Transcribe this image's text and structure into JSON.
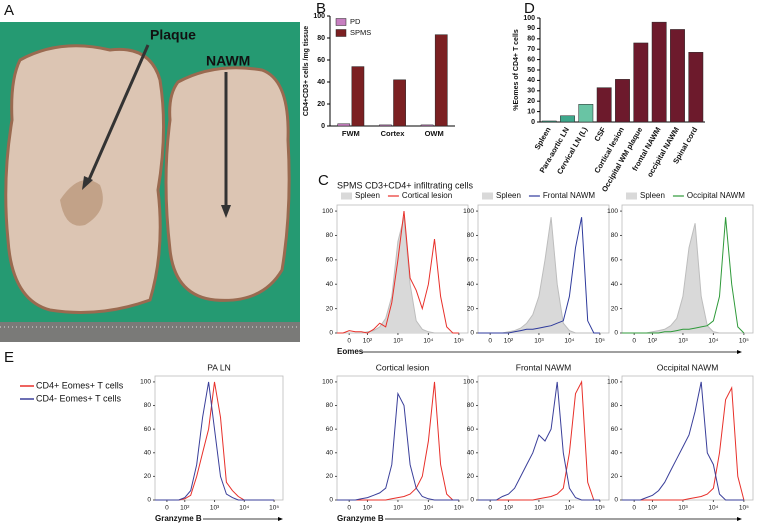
{
  "photo": {
    "panel": "A",
    "annotations": [
      "Plaque",
      "NAWM"
    ]
  },
  "legend_e": [
    {
      "name": "CD4+ Eomes+ T cells",
      "color": "#e8302a"
    },
    {
      "name": "CD4- Eomes+ T cells",
      "color": "#3a3f9a"
    }
  ],
  "chart_data": [
    {
      "type": "bar",
      "panel": "B",
      "y_label": "CD4+CD3+ cells /mg tissue",
      "categories": [
        "FWM",
        "Cortex",
        "OWM"
      ],
      "series": [
        {
          "name": "PD",
          "color": "#c77fc0",
          "values": [
            2,
            1,
            1
          ]
        },
        {
          "name": "SPMS",
          "color": "#7b2022",
          "values": [
            54,
            42,
            83
          ]
        }
      ],
      "ylim": [
        0,
        100
      ],
      "yticks": [
        0,
        20,
        40,
        60,
        80,
        100
      ]
    },
    {
      "type": "bar",
      "panel": "D",
      "y_label": "%Eomes of CD4+ T cells",
      "categories": [
        "Spleen",
        "Para-aortic LN",
        "Cervical LN (L)",
        "CSF",
        "Cortical lesion",
        "Occipital WM plaque",
        "frontal NAWM",
        "occipital NAWM",
        "Spinal cord"
      ],
      "values": [
        1,
        6,
        17,
        33,
        41,
        76,
        96,
        89,
        67
      ],
      "colors": [
        "#3fa88c",
        "#3fa88c",
        "#69c4a4",
        "#6d1a2c",
        "#6d1a2c",
        "#6d1a2c",
        "#6d1a2c",
        "#6d1a2c",
        "#6d1a2c"
      ],
      "ylim": [
        0,
        100
      ],
      "yticks": [
        0,
        10,
        20,
        30,
        40,
        50,
        60,
        70,
        80,
        90,
        100
      ]
    },
    {
      "type": "line",
      "panel": "C",
      "panel_title": "SPMS CD3+CD4+ infiltrating cells",
      "x_label": "Eomes",
      "x": [
        1.0,
        1.2,
        1.4,
        1.6,
        1.8,
        2.0,
        2.2,
        2.4,
        2.6,
        2.8,
        3.0,
        3.2,
        3.4,
        3.6,
        3.8,
        4.0,
        4.2,
        4.4,
        4.6,
        4.8,
        5.0
      ],
      "xlim": [
        1.0,
        5.3
      ],
      "xticks": [
        {
          "value": 1.4,
          "label": "0"
        },
        {
          "value": 2,
          "label": "10²"
        },
        {
          "value": 3,
          "label": "10³"
        },
        {
          "value": 4,
          "label": "10⁴"
        },
        {
          "value": 5,
          "label": "10⁵"
        }
      ],
      "ylim": [
        0,
        105
      ],
      "yticks": [
        0,
        20,
        40,
        60,
        80,
        100
      ],
      "series": [
        {
          "name": "Spleen",
          "color": "#bdbdbd",
          "fill": "#d9d9d9",
          "values": [
            0,
            0,
            0,
            0,
            0,
            1,
            2,
            5,
            12,
            30,
            75,
            95,
            40,
            10,
            3,
            1,
            0,
            0,
            0,
            0,
            0
          ]
        },
        {
          "name": "Cortical lesion",
          "color": "#e8302a",
          "values": [
            0,
            0,
            2,
            1,
            1,
            0,
            3,
            8,
            5,
            25,
            60,
            100,
            45,
            35,
            20,
            40,
            77,
            30,
            5,
            0,
            0
          ]
        }
      ]
    },
    {
      "type": "line",
      "x": [
        1.0,
        1.2,
        1.4,
        1.6,
        1.8,
        2.0,
        2.2,
        2.4,
        2.6,
        2.8,
        3.0,
        3.2,
        3.4,
        3.6,
        3.8,
        4.0,
        4.2,
        4.4,
        4.6,
        4.8,
        5.0
      ],
      "xlim": [
        1.0,
        5.3
      ],
      "xticks": [
        {
          "value": 1.4,
          "label": "0"
        },
        {
          "value": 2,
          "label": "10²"
        },
        {
          "value": 3,
          "label": "10³"
        },
        {
          "value": 4,
          "label": "10⁴"
        },
        {
          "value": 5,
          "label": "10⁵"
        }
      ],
      "ylim": [
        0,
        105
      ],
      "yticks": [
        0,
        20,
        40,
        60,
        80,
        100
      ],
      "series": [
        {
          "name": "Spleen",
          "color": "#bdbdbd",
          "fill": "#d9d9d9",
          "values": [
            0,
            0,
            0,
            0,
            0,
            1,
            2,
            4,
            8,
            15,
            30,
            60,
            95,
            40,
            8,
            2,
            0,
            0,
            0,
            0,
            0
          ]
        },
        {
          "name": "Frontal NAWM",
          "color": "#2e3a9c",
          "values": [
            0,
            0,
            0,
            0,
            0,
            0,
            1,
            2,
            3,
            3,
            4,
            5,
            6,
            8,
            10,
            30,
            70,
            95,
            10,
            0,
            0
          ]
        }
      ]
    },
    {
      "type": "line",
      "x": [
        1.0,
        1.2,
        1.4,
        1.6,
        1.8,
        2.0,
        2.2,
        2.4,
        2.6,
        2.8,
        3.0,
        3.2,
        3.4,
        3.6,
        3.8,
        4.0,
        4.2,
        4.4,
        4.6,
        4.8,
        5.0
      ],
      "xlim": [
        1.0,
        5.3
      ],
      "xticks": [
        {
          "value": 1.4,
          "label": "0"
        },
        {
          "value": 2,
          "label": "10²"
        },
        {
          "value": 3,
          "label": "10³"
        },
        {
          "value": 4,
          "label": "10⁴"
        },
        {
          "value": 5,
          "label": "10⁵"
        }
      ],
      "ylim": [
        0,
        105
      ],
      "yticks": [
        0,
        20,
        40,
        60,
        80,
        100
      ],
      "series": [
        {
          "name": "Spleen",
          "color": "#bdbdbd",
          "fill": "#d9d9d9",
          "values": [
            0,
            0,
            0,
            0,
            0,
            1,
            2,
            3,
            6,
            12,
            30,
            70,
            90,
            30,
            6,
            1,
            0,
            0,
            0,
            0,
            0
          ]
        },
        {
          "name": "Occipital NAWM",
          "color": "#2f9a3a",
          "values": [
            0,
            0,
            0,
            0,
            0,
            0,
            0,
            1,
            1,
            2,
            3,
            3,
            4,
            5,
            6,
            10,
            30,
            95,
            40,
            5,
            0
          ]
        }
      ]
    },
    {
      "type": "line",
      "panel": "E",
      "title": "PA LN",
      "x_label": "Granzyme B",
      "x": [
        1.0,
        1.2,
        1.4,
        1.6,
        1.8,
        2.0,
        2.2,
        2.4,
        2.6,
        2.8,
        3.0,
        3.2,
        3.4,
        3.6,
        3.8,
        4.0,
        4.2,
        4.4,
        4.6,
        4.8,
        5.0
      ],
      "xlim": [
        1.0,
        5.3
      ],
      "xticks": [
        {
          "value": 1.4,
          "label": "0"
        },
        {
          "value": 2,
          "label": "10²"
        },
        {
          "value": 3,
          "label": "10³"
        },
        {
          "value": 4,
          "label": "10⁴"
        },
        {
          "value": 5,
          "label": "10⁵"
        }
      ],
      "ylim": [
        0,
        105
      ],
      "yticks": [
        0,
        20,
        40,
        60,
        80,
        100
      ],
      "series": [
        {
          "values": [
            0,
            0,
            0,
            0,
            0,
            1,
            4,
            20,
            40,
            60,
            100,
            70,
            15,
            8,
            3,
            0,
            0,
            0,
            0,
            0,
            0
          ]
        },
        {
          "values": [
            0,
            0,
            0,
            0,
            0,
            2,
            8,
            30,
            70,
            100,
            60,
            20,
            5,
            2,
            0,
            0,
            0,
            0,
            0,
            0,
            0
          ]
        }
      ]
    },
    {
      "type": "line",
      "title": "Cortical lesion",
      "x_label": "Granzyme B",
      "x": [
        1.0,
        1.2,
        1.4,
        1.6,
        1.8,
        2.0,
        2.2,
        2.4,
        2.6,
        2.8,
        3.0,
        3.2,
        3.4,
        3.6,
        3.8,
        4.0,
        4.2,
        4.4,
        4.6,
        4.8,
        5.0
      ],
      "xlim": [
        1.0,
        5.3
      ],
      "xticks": [
        {
          "value": 1.4,
          "label": "0"
        },
        {
          "value": 2,
          "label": "10²"
        },
        {
          "value": 3,
          "label": "10³"
        },
        {
          "value": 4,
          "label": "10⁴"
        },
        {
          "value": 5,
          "label": "10⁵"
        }
      ],
      "ylim": [
        0,
        105
      ],
      "yticks": [
        0,
        20,
        40,
        60,
        80,
        100
      ],
      "series": [
        {
          "values": [
            0,
            0,
            0,
            0,
            0,
            0,
            0,
            0,
            0,
            1,
            2,
            3,
            5,
            10,
            20,
            50,
            100,
            30,
            5,
            0,
            0
          ]
        },
        {
          "values": [
            0,
            0,
            0,
            0,
            1,
            2,
            4,
            6,
            10,
            30,
            90,
            80,
            30,
            10,
            3,
            1,
            0,
            0,
            0,
            0,
            0
          ]
        }
      ]
    },
    {
      "type": "line",
      "title": "Frontal NAWM",
      "x": [
        1.0,
        1.2,
        1.4,
        1.6,
        1.8,
        2.0,
        2.2,
        2.4,
        2.6,
        2.8,
        3.0,
        3.2,
        3.4,
        3.6,
        3.8,
        4.0,
        4.2,
        4.4,
        4.6,
        4.8,
        5.0
      ],
      "xlim": [
        1.0,
        5.3
      ],
      "xticks": [
        {
          "value": 1.4,
          "label": "0"
        },
        {
          "value": 2,
          "label": "10²"
        },
        {
          "value": 3,
          "label": "10³"
        },
        {
          "value": 4,
          "label": "10⁴"
        },
        {
          "value": 5,
          "label": "10⁵"
        }
      ],
      "ylim": [
        0,
        105
      ],
      "yticks": [
        0,
        20,
        40,
        60,
        80,
        100
      ],
      "series": [
        {
          "values": [
            0,
            0,
            0,
            0,
            0,
            0,
            0,
            0,
            0,
            0,
            1,
            2,
            3,
            5,
            10,
            40,
            90,
            100,
            15,
            0,
            0
          ]
        },
        {
          "values": [
            0,
            0,
            0,
            0,
            3,
            5,
            10,
            20,
            30,
            40,
            55,
            50,
            60,
            100,
            40,
            10,
            2,
            0,
            0,
            0,
            0
          ]
        }
      ]
    },
    {
      "type": "line",
      "title": "Occipital NAWM",
      "x": [
        1.0,
        1.2,
        1.4,
        1.6,
        1.8,
        2.0,
        2.2,
        2.4,
        2.6,
        2.8,
        3.0,
        3.2,
        3.4,
        3.6,
        3.8,
        4.0,
        4.2,
        4.4,
        4.6,
        4.8,
        5.0
      ],
      "xlim": [
        1.0,
        5.3
      ],
      "xticks": [
        {
          "value": 1.4,
          "label": "0"
        },
        {
          "value": 2,
          "label": "10²"
        },
        {
          "value": 3,
          "label": "10³"
        },
        {
          "value": 4,
          "label": "10⁴"
        },
        {
          "value": 5,
          "label": "10⁵"
        }
      ],
      "ylim": [
        0,
        105
      ],
      "yticks": [
        0,
        20,
        40,
        60,
        80,
        100
      ],
      "series": [
        {
          "values": [
            0,
            0,
            0,
            0,
            0,
            0,
            0,
            0,
            0,
            0,
            0,
            1,
            2,
            3,
            5,
            10,
            40,
            85,
            95,
            20,
            0
          ]
        },
        {
          "values": [
            0,
            0,
            0,
            0,
            2,
            4,
            8,
            15,
            25,
            35,
            45,
            55,
            75,
            100,
            40,
            30,
            5,
            0,
            0,
            0,
            0
          ]
        }
      ]
    }
  ]
}
